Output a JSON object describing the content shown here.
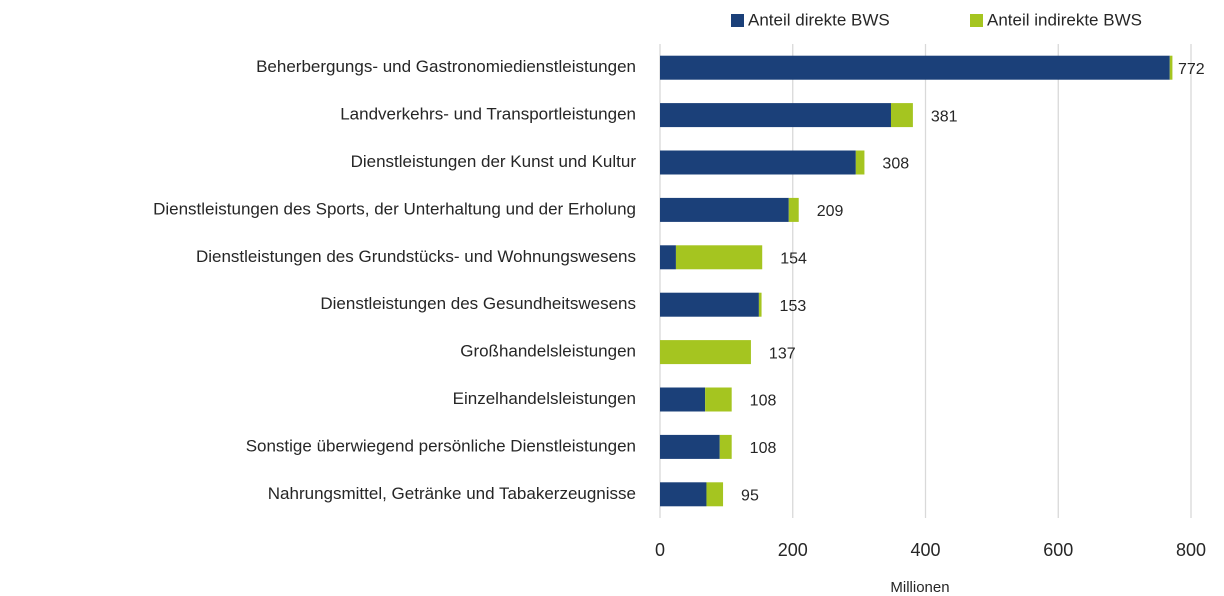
{
  "chart_data": {
    "type": "stacked_barh",
    "categories": [
      "Beherbergungs- und Gastronomiedienstleistungen",
      "Landverkehrs- und Transportleistungen",
      "Dienstleistungen der Kunst und Kultur",
      "Dienstleistungen des Sports, der Unterhaltung und der Erholung",
      "Dienstleistungen des Grundstücks- und Wohnungswesens",
      "Dienstleistungen des Gesundheitswesens",
      "Großhandelsleistungen",
      "Einzelhandelsleistungen",
      "Sonstige überwiegend persönliche Dienstleistungen",
      "Nahrungsmittel, Getränke und Tabakerzeugnisse"
    ],
    "series": [
      {
        "name": "Anteil direkte BWS",
        "color": "#1b4079",
        "values": [
          768,
          348,
          295,
          194,
          24,
          149,
          0,
          68,
          90,
          70
        ]
      },
      {
        "name": "Anteil indirekte BWS",
        "color": "#a5c520",
        "values": [
          4,
          33,
          13,
          15,
          130,
          4,
          137,
          40,
          18,
          25
        ]
      }
    ],
    "totals": [
      772,
      381,
      308,
      209,
      154,
      153,
      137,
      108,
      108,
      95
    ],
    "xlabel": "Millionen",
    "xlim": [
      0,
      800
    ],
    "xticks": [
      0,
      200,
      400,
      600,
      800
    ],
    "grid": true
  }
}
